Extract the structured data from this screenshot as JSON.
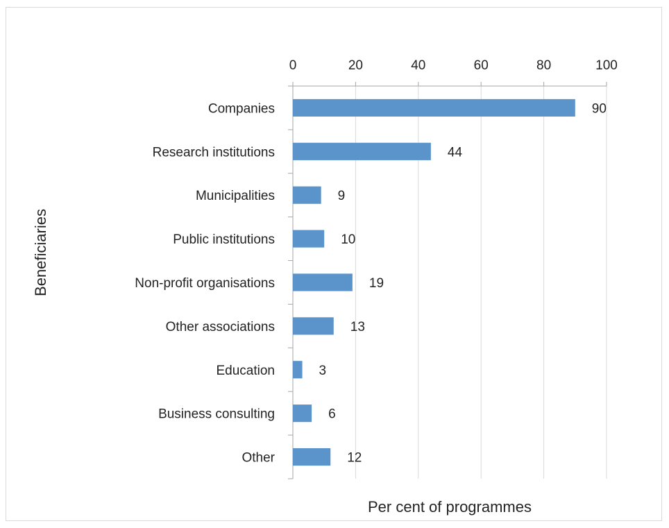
{
  "chart_data": {
    "type": "bar",
    "orientation": "horizontal",
    "categories": [
      "Companies",
      "Research institutions",
      "Municipalities",
      "Public institutions",
      "Non-profit organisations",
      "Other associations",
      "Education",
      "Business consulting",
      "Other"
    ],
    "values": [
      90,
      44,
      9,
      10,
      19,
      13,
      3,
      6,
      12
    ],
    "data_labels": [
      "90",
      "44",
      "9",
      "10",
      "19",
      "13",
      "3",
      "6",
      "12"
    ],
    "xlabel": "Per cent of programmes",
    "ylabel": "Beneficiaries",
    "xlim": [
      0,
      100
    ],
    "x_ticks": [
      0,
      20,
      40,
      60,
      80,
      100
    ],
    "x_tick_labels": [
      "0",
      "20",
      "40",
      "60",
      "80",
      "100"
    ],
    "x_axis_position": "top",
    "grid": "vertical",
    "legend": "none",
    "colors": {
      "bar": "#5b93cb",
      "grid": "#d9d9d9",
      "axis": "#a6a6a6"
    }
  }
}
